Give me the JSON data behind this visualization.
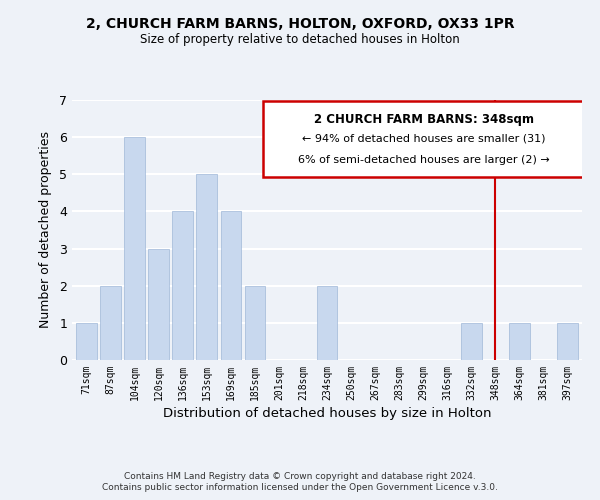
{
  "title": "2, CHURCH FARM BARNS, HOLTON, OXFORD, OX33 1PR",
  "subtitle": "Size of property relative to detached houses in Holton",
  "xlabel": "Distribution of detached houses by size in Holton",
  "ylabel": "Number of detached properties",
  "bin_labels": [
    "71sqm",
    "87sqm",
    "104sqm",
    "120sqm",
    "136sqm",
    "153sqm",
    "169sqm",
    "185sqm",
    "201sqm",
    "218sqm",
    "234sqm",
    "250sqm",
    "267sqm",
    "283sqm",
    "299sqm",
    "316sqm",
    "332sqm",
    "348sqm",
    "364sqm",
    "381sqm",
    "397sqm"
  ],
  "bar_heights": [
    1,
    2,
    6,
    3,
    4,
    5,
    4,
    2,
    0,
    0,
    2,
    0,
    0,
    0,
    0,
    0,
    1,
    0,
    1,
    0,
    1
  ],
  "bar_color": "#c8d8ee",
  "bar_edge_color": "#a0b8d8",
  "marker_index": 17,
  "marker_color": "#cc0000",
  "ylim": [
    0,
    7
  ],
  "yticks": [
    0,
    1,
    2,
    3,
    4,
    5,
    6,
    7
  ],
  "annotation_title": "2 CHURCH FARM BARNS: 348sqm",
  "annotation_line1": "← 94% of detached houses are smaller (31)",
  "annotation_line2": "6% of semi-detached houses are larger (2) →",
  "annotation_box_color": "#ffffff",
  "annotation_box_edge": "#cc0000",
  "footer_line1": "Contains HM Land Registry data © Crown copyright and database right 2024.",
  "footer_line2": "Contains public sector information licensed under the Open Government Licence v.3.0.",
  "background_color": "#eef2f8"
}
